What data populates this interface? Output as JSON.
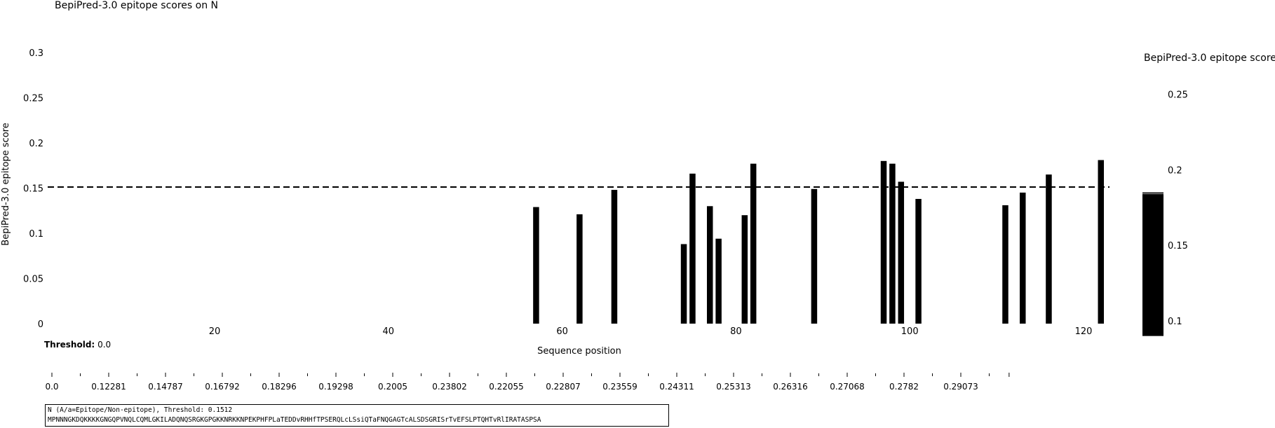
{
  "chart_data": {
    "type": "bar",
    "title": "BepiPred-3.0 epitope scores on N",
    "xlabel": "Sequence position",
    "ylabel": "BepiPred-3.0 epitope score",
    "ylim": [
      0,
      0.3
    ],
    "yticks": [
      "0",
      "0.05",
      "0.1",
      "0.15",
      "0.2",
      "0.25",
      "0.3"
    ],
    "xlim": [
      0,
      125
    ],
    "xticks": [
      20,
      40,
      60,
      80,
      100,
      120
    ],
    "xtick_labels": [
      "20",
      "40",
      "60",
      "80",
      "100",
      "120"
    ],
    "threshold_line": 0.1512,
    "bars": [
      {
        "x": 57,
        "y": 0.129
      },
      {
        "x": 62,
        "y": 0.121
      },
      {
        "x": 66,
        "y": 0.148
      },
      {
        "x": 74,
        "y": 0.088
      },
      {
        "x": 75,
        "y": 0.166
      },
      {
        "x": 77,
        "y": 0.13
      },
      {
        "x": 78,
        "y": 0.094
      },
      {
        "x": 81,
        "y": 0.12
      },
      {
        "x": 82,
        "y": 0.177
      },
      {
        "x": 89,
        "y": 0.149
      },
      {
        "x": 97,
        "y": 0.18
      },
      {
        "x": 98,
        "y": 0.177
      },
      {
        "x": 99,
        "y": 0.157
      },
      {
        "x": 101,
        "y": 0.138
      },
      {
        "x": 111,
        "y": 0.131
      },
      {
        "x": 113,
        "y": 0.145
      },
      {
        "x": 116,
        "y": 0.165
      },
      {
        "x": 122,
        "y": 0.181
      }
    ],
    "colorbar": {
      "label": "BepiPred-3.0 epitope score",
      "ticks": [
        "0.25",
        "0.2",
        "0.15",
        "0.1"
      ],
      "tick_values": [
        0.25,
        0.2,
        0.15,
        0.1
      ],
      "range": [
        0.0815,
        0.2775
      ],
      "bar_range": [
        0.09,
        0.185
      ]
    },
    "threshold_slider": {
      "label": "Threshold",
      "value": "0.0",
      "ticks": [
        "0.0",
        "0.12281",
        "0.14787",
        "0.16792",
        "0.18296",
        "0.19298",
        "0.2005",
        "0.23802",
        "0.22055",
        "0.22807",
        "0.23559",
        "0.24311",
        "0.25313",
        "0.26316",
        "0.27068",
        "0.2782",
        "0.29073"
      ]
    },
    "colors": {
      "bars": "#000000",
      "threshold": "#000000",
      "background": "#ffffff"
    }
  },
  "sequence": {
    "header": "N (A/a=Epitope/Non-epitope), Threshold: 0.1512",
    "residues": "MPNNNGKDQKKKKGNGQPVNQLCQMLGKILADQNQSRGKGPGKKNRKKNPEKPHFPLaTEDDvRHHfTPSERQLcLSsiQTaFNQGAGTcALSDSGRISrTvEFSLPTQHTvRlIRATASPSA"
  }
}
